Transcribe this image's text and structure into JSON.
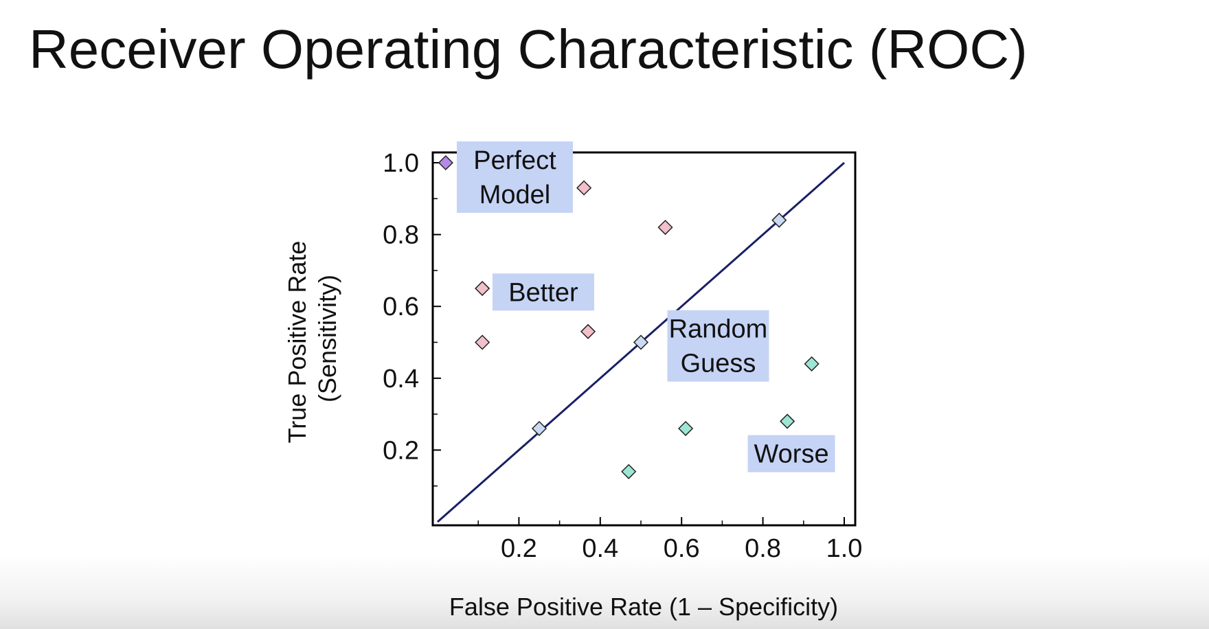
{
  "title": "Receiver Operating Characteristic (ROC)",
  "chart_data": {
    "type": "scatter",
    "title": "",
    "xlabel": "False Positive Rate (1 – Specificity)",
    "ylabel": [
      "True Positive Rate",
      "(Sensitivity)"
    ],
    "xlim": [
      0,
      1.03
    ],
    "ylim": [
      0,
      1.03
    ],
    "xticks": [
      0.2,
      0.4,
      0.6,
      0.8,
      1.0
    ],
    "yticks": [
      0.2,
      0.4,
      0.6,
      0.8,
      1.0
    ],
    "xtick_labels": [
      "0.2",
      "0.4",
      "0.6",
      "0.8",
      "1.0"
    ],
    "ytick_labels": [
      "0.2",
      "0.4",
      "0.6",
      "0.8",
      "1.0"
    ],
    "grid": false,
    "reference_line": {
      "from": [
        0,
        0
      ],
      "to": [
        1,
        1
      ],
      "color": "#1a1f66"
    },
    "series": [
      {
        "group": "perfect",
        "color": "#b58ae6",
        "points": [
          [
            0.02,
            1.0
          ]
        ]
      },
      {
        "group": "better",
        "color": "#f2bfcb",
        "points": [
          [
            0.36,
            0.93
          ],
          [
            0.56,
            0.82
          ],
          [
            0.11,
            0.65
          ],
          [
            0.11,
            0.5
          ],
          [
            0.37,
            0.53
          ]
        ]
      },
      {
        "group": "random",
        "color": "#c9daf2",
        "points": [
          [
            0.84,
            0.84
          ],
          [
            0.5,
            0.5
          ],
          [
            0.25,
            0.26
          ]
        ]
      },
      {
        "group": "worse",
        "color": "#9ee6d4",
        "points": [
          [
            0.92,
            0.44
          ],
          [
            0.61,
            0.26
          ],
          [
            0.86,
            0.28
          ],
          [
            0.47,
            0.14
          ]
        ]
      }
    ],
    "annotations": [
      {
        "lines": [
          "Perfect",
          "Model"
        ],
        "x": 0.19,
        "y": 0.96
      },
      {
        "lines": [
          "Better"
        ],
        "x": 0.26,
        "y": 0.64
      },
      {
        "lines": [
          "Random",
          "Guess"
        ],
        "x": 0.69,
        "y": 0.49
      },
      {
        "lines": [
          "Worse"
        ],
        "x": 0.87,
        "y": 0.19
      }
    ],
    "annotation_bg": "#c5d3f5",
    "axis_color": "#000000"
  }
}
